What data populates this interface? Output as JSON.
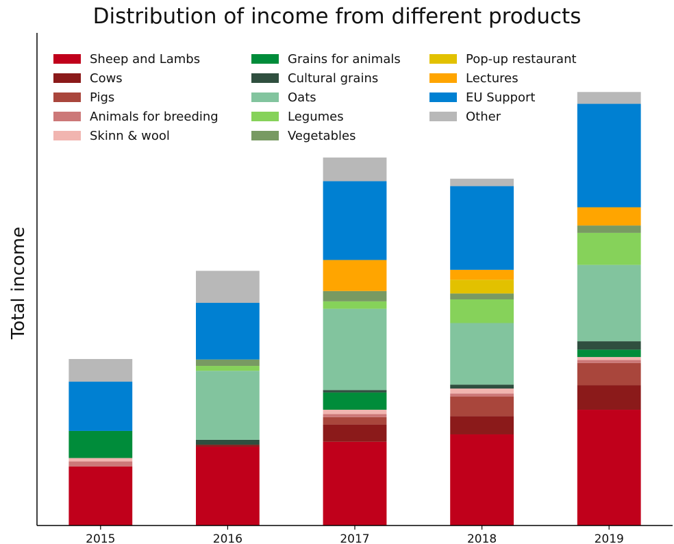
{
  "chart_data": {
    "type": "bar",
    "stacked": true,
    "title": "Distribution of income from different products",
    "xlabel": "",
    "ylabel": "Total income",
    "y_ticks_shown": false,
    "legend_placement": "top-left, three columns",
    "categories": [
      "2015",
      "2016",
      "2017",
      "2018",
      "2019"
    ],
    "ylim": [
      0,
      100
    ],
    "series": [
      {
        "name": "Sheep and Lambs",
        "color": "#c0001b",
        "values": [
          12.0,
          16.0,
          17.0,
          18.5,
          23.5
        ]
      },
      {
        "name": "Cows",
        "color": "#8b1a1a",
        "values": [
          0,
          0.4,
          3.5,
          3.7,
          5.0
        ]
      },
      {
        "name": "Pigs",
        "color": "#a9463c",
        "values": [
          0,
          0,
          1.5,
          4.0,
          4.5
        ]
      },
      {
        "name": "Animals for breeding",
        "color": "#cc7878",
        "values": [
          1.0,
          0,
          0.6,
          0.6,
          0.6
        ]
      },
      {
        "name": "Skinn & wool",
        "color": "#f1b5b0",
        "values": [
          0.7,
          0,
          0.9,
          1.0,
          0.6
        ]
      },
      {
        "name": "Grains for animals",
        "color": "#008c3a",
        "values": [
          5.5,
          0,
          3.5,
          0,
          1.5
        ]
      },
      {
        "name": "Cultural grains",
        "color": "#2f4f3f",
        "values": [
          0,
          1.0,
          0.5,
          0.8,
          1.7
        ]
      },
      {
        "name": "Oats",
        "color": "#82c49e",
        "values": [
          0,
          14.0,
          16.5,
          12.5,
          15.5
        ]
      },
      {
        "name": "Legumes",
        "color": "#86d25a",
        "values": [
          0,
          1.0,
          1.5,
          4.8,
          6.5
        ]
      },
      {
        "name": "Vegetables",
        "color": "#789a62",
        "values": [
          0,
          1.3,
          2.1,
          1.2,
          1.5
        ]
      },
      {
        "name": "Pop-up restaurant",
        "color": "#e2c100",
        "values": [
          0,
          0,
          0,
          2.8,
          0
        ]
      },
      {
        "name": "Lectures",
        "color": "#ffa500",
        "values": [
          0,
          0,
          6.3,
          2.0,
          3.7
        ]
      },
      {
        "name": "EU Support",
        "color": "#0080d2",
        "values": [
          10.0,
          11.5,
          16.0,
          17.0,
          21.0
        ]
      },
      {
        "name": "Other",
        "color": "#b8b8b8",
        "values": [
          4.6,
          6.5,
          4.8,
          1.5,
          2.4
        ]
      }
    ]
  }
}
